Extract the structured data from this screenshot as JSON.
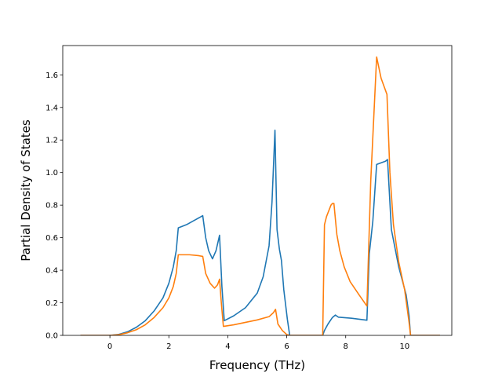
{
  "chart_data": {
    "type": "line",
    "title": "",
    "xlabel": "Frequency (THz)",
    "ylabel": "Partial Density of States",
    "xlim": [
      -1.6,
      11.6
    ],
    "ylim": [
      0.0,
      1.78
    ],
    "xticks": [
      0,
      2,
      4,
      6,
      8,
      10
    ],
    "yticks": [
      0.0,
      0.2,
      0.4,
      0.6,
      0.8,
      1.0,
      1.2,
      1.4,
      1.6
    ],
    "xtick_labels": [
      "0",
      "2",
      "4",
      "6",
      "8",
      "10"
    ],
    "ytick_labels": [
      "0.0",
      "0.2",
      "0.4",
      "0.6",
      "0.8",
      "1.0",
      "1.2",
      "1.4",
      "1.6"
    ],
    "grid": false,
    "legend": "none",
    "series": [
      {
        "color": "#1f77b4",
        "points": [
          [
            -1.0,
            0.0
          ],
          [
            0.0,
            0.0
          ],
          [
            0.3,
            0.006
          ],
          [
            0.6,
            0.022
          ],
          [
            0.9,
            0.05
          ],
          [
            1.2,
            0.09
          ],
          [
            1.5,
            0.15
          ],
          [
            1.8,
            0.23
          ],
          [
            2.0,
            0.32
          ],
          [
            2.15,
            0.42
          ],
          [
            2.25,
            0.52
          ],
          [
            2.32,
            0.66
          ],
          [
            2.6,
            0.68
          ],
          [
            2.9,
            0.71
          ],
          [
            3.15,
            0.735
          ],
          [
            3.25,
            0.6
          ],
          [
            3.35,
            0.52
          ],
          [
            3.48,
            0.47
          ],
          [
            3.6,
            0.52
          ],
          [
            3.72,
            0.615
          ],
          [
            3.8,
            0.3
          ],
          [
            3.88,
            0.09
          ],
          [
            4.2,
            0.12
          ],
          [
            4.6,
            0.17
          ],
          [
            5.0,
            0.26
          ],
          [
            5.2,
            0.36
          ],
          [
            5.4,
            0.55
          ],
          [
            5.5,
            0.82
          ],
          [
            5.6,
            1.26
          ],
          [
            5.67,
            0.65
          ],
          [
            5.75,
            0.53
          ],
          [
            5.82,
            0.46
          ],
          [
            5.9,
            0.28
          ],
          [
            6.02,
            0.1
          ],
          [
            6.1,
            0.0
          ],
          [
            7.22,
            0.0
          ],
          [
            7.28,
            0.03
          ],
          [
            7.4,
            0.07
          ],
          [
            7.55,
            0.11
          ],
          [
            7.65,
            0.125
          ],
          [
            7.75,
            0.112
          ],
          [
            8.2,
            0.105
          ],
          [
            8.72,
            0.093
          ],
          [
            8.8,
            0.5
          ],
          [
            8.92,
            0.7
          ],
          [
            9.05,
            1.05
          ],
          [
            9.35,
            1.07
          ],
          [
            9.42,
            1.08
          ],
          [
            9.55,
            0.65
          ],
          [
            9.8,
            0.42
          ],
          [
            10.05,
            0.25
          ],
          [
            10.15,
            0.12
          ],
          [
            10.2,
            0.0
          ],
          [
            11.2,
            0.0
          ]
        ]
      },
      {
        "color": "#ff7f0e",
        "points": [
          [
            -1.0,
            0.0
          ],
          [
            0.0,
            0.0
          ],
          [
            0.3,
            0.004
          ],
          [
            0.6,
            0.016
          ],
          [
            0.9,
            0.035
          ],
          [
            1.2,
            0.065
          ],
          [
            1.5,
            0.11
          ],
          [
            1.8,
            0.17
          ],
          [
            2.0,
            0.23
          ],
          [
            2.15,
            0.3
          ],
          [
            2.25,
            0.38
          ],
          [
            2.32,
            0.495
          ],
          [
            2.7,
            0.495
          ],
          [
            3.0,
            0.49
          ],
          [
            3.15,
            0.485
          ],
          [
            3.25,
            0.38
          ],
          [
            3.4,
            0.32
          ],
          [
            3.55,
            0.29
          ],
          [
            3.65,
            0.31
          ],
          [
            3.72,
            0.345
          ],
          [
            3.78,
            0.2
          ],
          [
            3.85,
            0.055
          ],
          [
            4.2,
            0.065
          ],
          [
            4.6,
            0.08
          ],
          [
            5.0,
            0.095
          ],
          [
            5.4,
            0.115
          ],
          [
            5.55,
            0.14
          ],
          [
            5.62,
            0.16
          ],
          [
            5.7,
            0.07
          ],
          [
            5.85,
            0.03
          ],
          [
            6.0,
            0.005
          ],
          [
            6.1,
            0.0
          ],
          [
            7.22,
            0.0
          ],
          [
            7.28,
            0.68
          ],
          [
            7.35,
            0.73
          ],
          [
            7.5,
            0.8
          ],
          [
            7.55,
            0.81
          ],
          [
            7.6,
            0.81
          ],
          [
            7.7,
            0.62
          ],
          [
            7.8,
            0.52
          ],
          [
            7.95,
            0.42
          ],
          [
            8.15,
            0.33
          ],
          [
            8.45,
            0.25
          ],
          [
            8.72,
            0.18
          ],
          [
            8.85,
            0.95
          ],
          [
            9.05,
            1.71
          ],
          [
            9.2,
            1.58
          ],
          [
            9.4,
            1.48
          ],
          [
            9.5,
            1.0
          ],
          [
            9.62,
            0.68
          ],
          [
            9.8,
            0.45
          ],
          [
            10.0,
            0.28
          ],
          [
            10.15,
            0.08
          ],
          [
            10.2,
            0.0
          ],
          [
            11.2,
            0.0
          ]
        ]
      }
    ]
  }
}
